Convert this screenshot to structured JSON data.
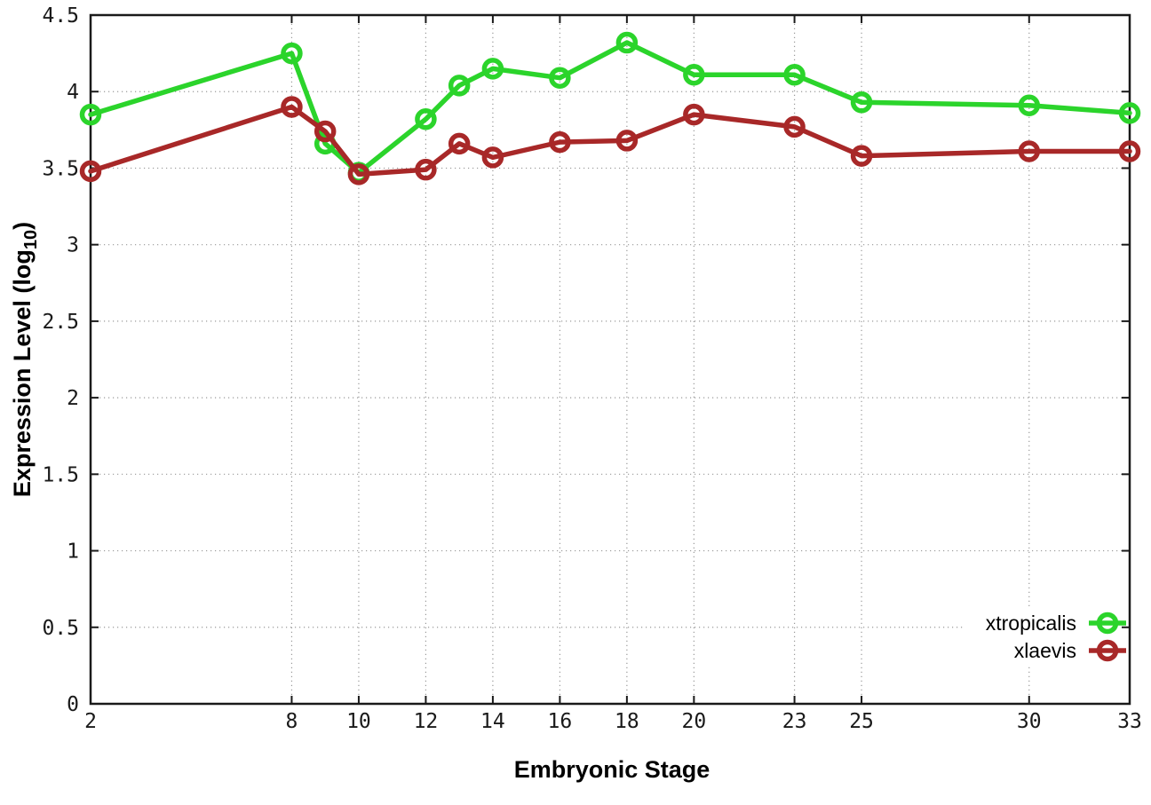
{
  "chart_data": {
    "type": "line",
    "title": "",
    "xlabel": "Embryonic Stage",
    "ylabel": "Expression Level (log10)",
    "ylabel_parts": {
      "main": "Expression Level (log",
      "sub": "10",
      "close": ")"
    },
    "x": [
      2,
      8,
      9,
      10,
      12,
      13,
      14,
      16,
      18,
      20,
      23,
      25,
      30,
      33
    ],
    "series": [
      {
        "name": "xtropicalis",
        "color": "#2bd42b",
        "marker": "open-circle",
        "values": [
          3.85,
          4.25,
          3.66,
          3.47,
          3.82,
          4.04,
          4.15,
          4.09,
          4.32,
          4.11,
          4.11,
          3.93,
          3.91,
          3.86
        ]
      },
      {
        "name": "xlaevis",
        "color": "#a82828",
        "marker": "open-circle",
        "values": [
          3.48,
          3.9,
          3.74,
          3.46,
          3.49,
          3.66,
          3.57,
          3.67,
          3.68,
          3.85,
          3.77,
          3.58,
          3.61,
          3.61
        ]
      }
    ],
    "xlim": [
      2,
      33
    ],
    "ylim": [
      0,
      4.5
    ],
    "xticks": [
      2,
      8,
      10,
      12,
      14,
      16,
      18,
      20,
      23,
      25,
      30,
      33
    ],
    "xtick_labels": [
      "2",
      "8",
      "10",
      "12",
      "14",
      "16",
      "18",
      "20",
      "23",
      "25",
      "30",
      "33"
    ],
    "yticks": [
      0,
      0.5,
      1,
      1.5,
      2,
      2.5,
      3,
      3.5,
      4,
      4.5
    ],
    "ytick_labels": [
      "0",
      "0.5",
      "1",
      "1.5",
      "2",
      "2.5",
      "3",
      "3.5",
      "4",
      "4.5"
    ],
    "grid": true,
    "grid_style": "dotted",
    "legend_position": "inside-bottom-right",
    "legend_entries": [
      "xtropicalis",
      "xlaevis"
    ],
    "colors": {
      "background": "#ffffff",
      "axis": "#1a1a1a",
      "grid": "#9a9a9a",
      "xtropicalis": "#2bd42b",
      "xlaevis": "#a82828"
    }
  }
}
